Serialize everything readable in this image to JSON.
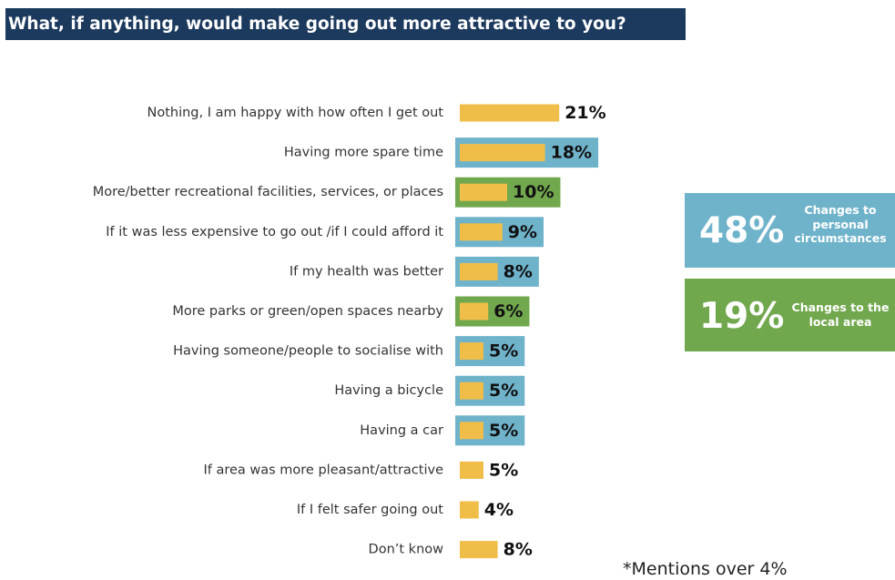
{
  "title": "What, if anything, would make going out more attractive to you?",
  "colors": {
    "title_bg": "#1c3a5e",
    "bar": "#f0be48",
    "personal": "#6fb3cb",
    "local": "#71a84e",
    "value_text": "#111111",
    "label_text": "#333333"
  },
  "chart_data": {
    "type": "bar",
    "orientation": "horizontal",
    "categories": [
      "Nothing, I am happy with how often I get out",
      "Having more spare time",
      "More/better recreational facilities, services, or places",
      "If it was less expensive to go out /if I could afford it",
      "If my health was better",
      "More parks or green/open spaces nearby",
      "Having someone/people to socialise with",
      "Having a bicycle",
      "Having a car",
      "If area was more pleasant/attractive",
      "If I felt safer going out",
      "Don’t know"
    ],
    "values": [
      21,
      18,
      10,
      9,
      8,
      6,
      5,
      5,
      5,
      5,
      4,
      8
    ],
    "value_labels": [
      "21%",
      "18%",
      "10%",
      "9%",
      "8%",
      "6%",
      "5%",
      "5%",
      "5%",
      "5%",
      "4%",
      "8%"
    ],
    "groups": [
      "none",
      "personal",
      "local",
      "personal",
      "personal",
      "local",
      "personal",
      "personal",
      "personal",
      "none",
      "none",
      "none"
    ],
    "unit": "%"
  },
  "callouts": {
    "personal": {
      "value": "48%",
      "label": "Changes to personal circumstances"
    },
    "local": {
      "value": "19%",
      "label": "Changes to the local area"
    }
  },
  "footnote": "*Mentions over 4%"
}
